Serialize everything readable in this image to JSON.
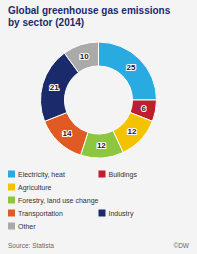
{
  "chart_data": {
    "type": "pie",
    "donut": true,
    "title": "Global greenhouse gas emissions\nby sector (2014)",
    "categories": [
      "Electricity, heat",
      "Buildings",
      "Agriculture",
      "Forestry, land use change",
      "Transportation",
      "Industry",
      "Other"
    ],
    "values": [
      25,
      6,
      12,
      12,
      14,
      21,
      10
    ],
    "colors": [
      "#29ABE2",
      "#BE1E2D",
      "#F5C200",
      "#8DC63F",
      "#E05A23",
      "#1B2A6B",
      "#AAAAAA"
    ],
    "data_labels": true,
    "legend": "bottom",
    "annotations": [
      "Source: Statista",
      "©DW"
    ]
  }
}
